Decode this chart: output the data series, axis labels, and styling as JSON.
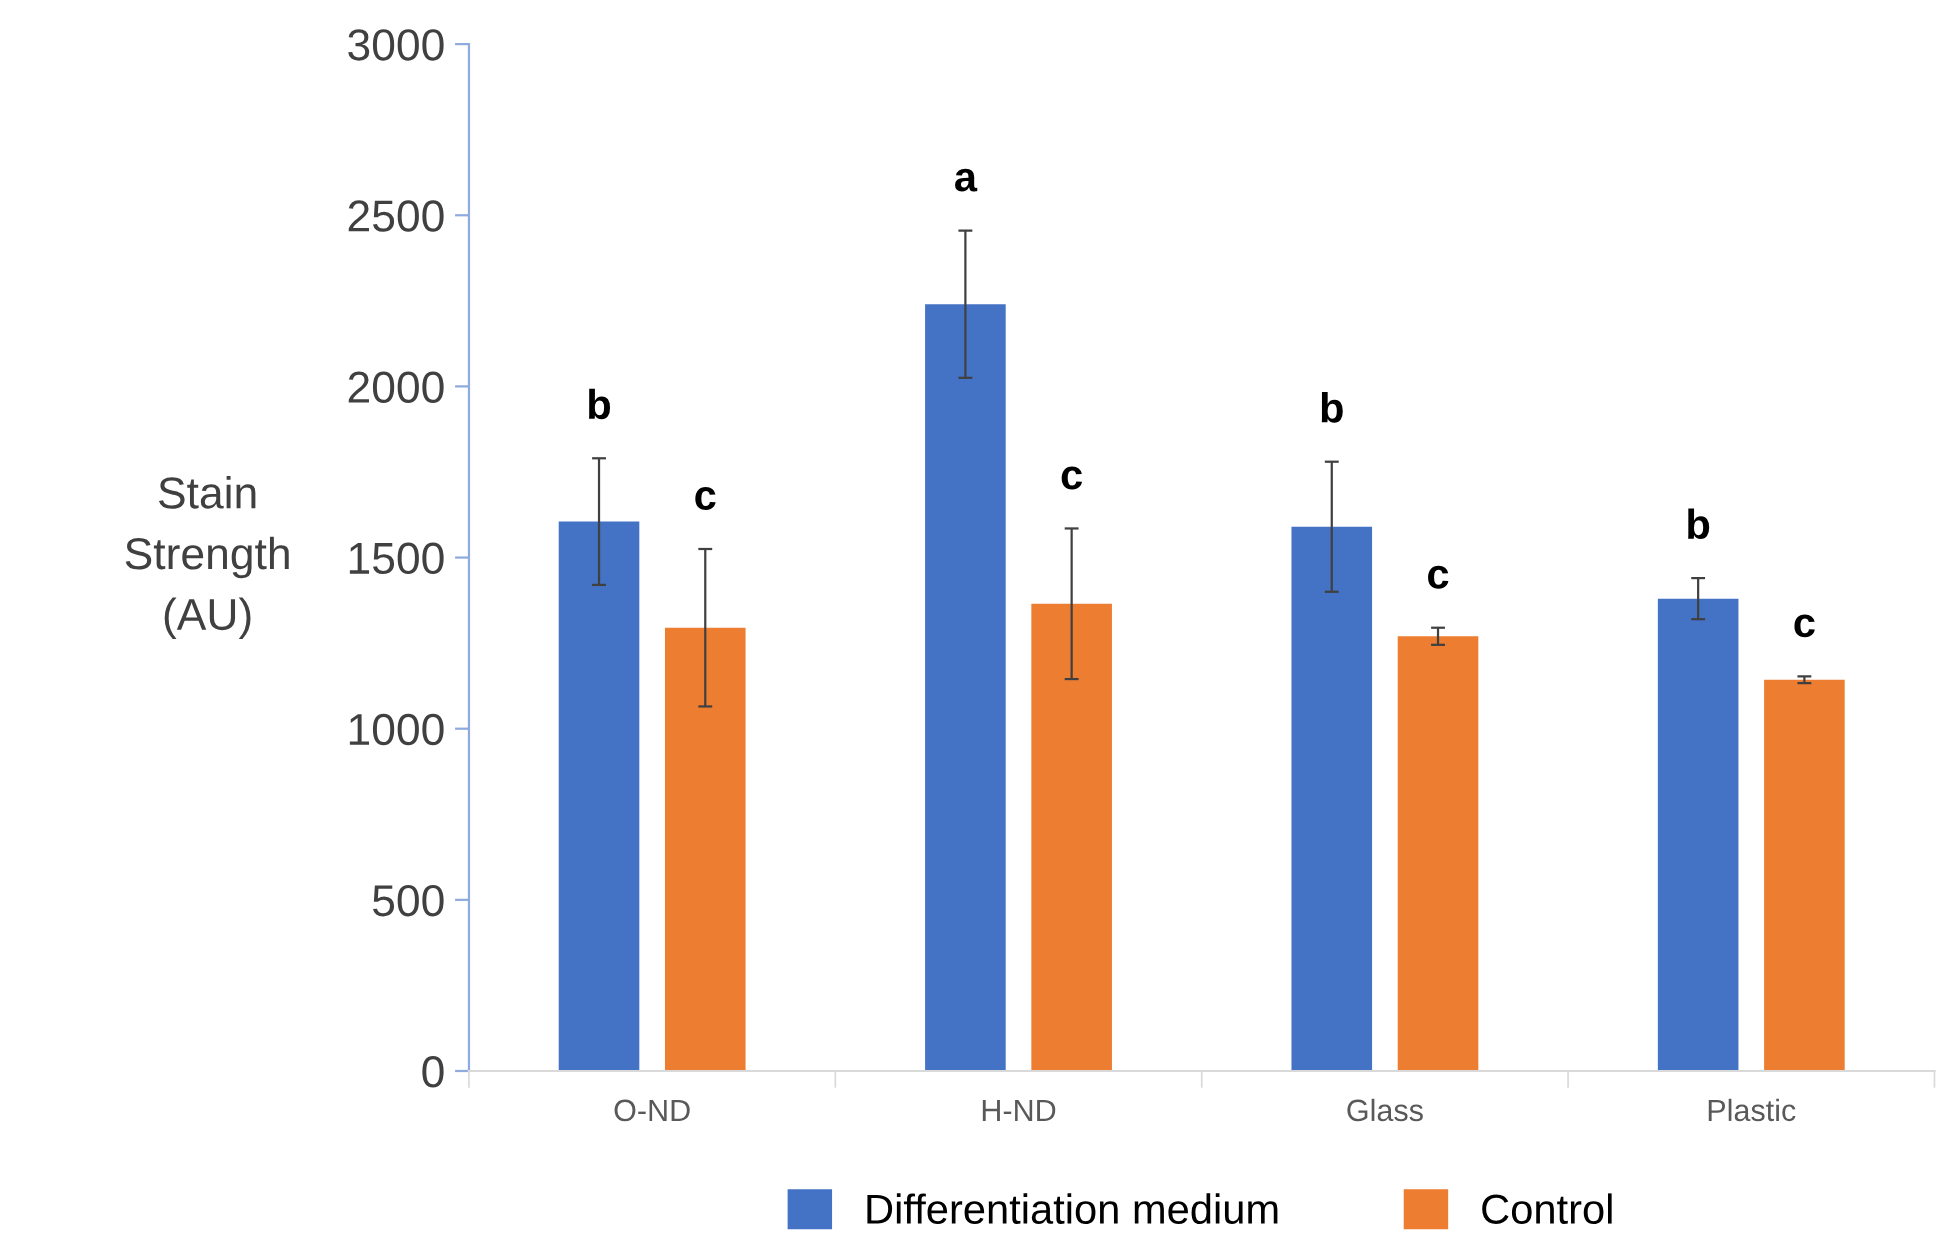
{
  "chart_data": {
    "type": "bar",
    "ylabel": "Stain\nStrength\n(AU)",
    "categories": [
      "O-ND",
      "H-ND",
      "Glass",
      "Plastic"
    ],
    "series": [
      {
        "name": "Differentiation medium",
        "color": "#4472c4",
        "values": [
          1605,
          2240,
          1590,
          1380
        ],
        "errors": [
          185,
          215,
          190,
          60
        ],
        "value_labels": [
          "b",
          "a",
          "b",
          "b"
        ]
      },
      {
        "name": "Control",
        "color": "#ed7d31",
        "values": [
          1295,
          1365,
          1270,
          1143
        ],
        "errors": [
          230,
          220,
          25,
          10
        ],
        "value_labels": [
          "c",
          "c",
          "c",
          "c"
        ]
      }
    ],
    "ylim": [
      0,
      3000
    ],
    "yticks": [
      0,
      500,
      1000,
      1500,
      2000,
      2500,
      3000
    ],
    "grid": false,
    "legend": "bottom"
  }
}
